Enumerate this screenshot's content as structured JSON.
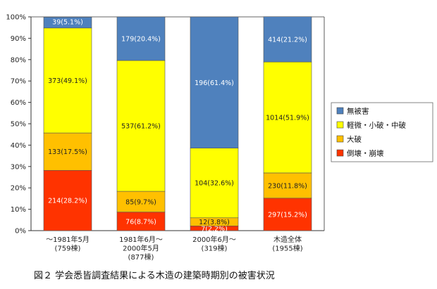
{
  "chart_data": {
    "type": "bar",
    "stacked": true,
    "percent": true,
    "title": "図２ 学会悉皆調査結果による木造の建築時期別の被害状況",
    "categories": [
      {
        "label": "～1981年5月",
        "sub": "(759棟)"
      },
      {
        "label": "1981年6月～",
        "label2": "2000年5月",
        "sub": "(877棟)"
      },
      {
        "label": "2000年6月～",
        "sub": "(319棟)"
      },
      {
        "label": "木造全体",
        "sub": "(1955棟)"
      }
    ],
    "y_ticks": [
      "0%",
      "10%",
      "20%",
      "30%",
      "40%",
      "50%",
      "60%",
      "70%",
      "80%",
      "90%",
      "100%"
    ],
    "ylim": [
      0,
      100
    ],
    "series": [
      {
        "name": "倒壊・崩壊",
        "color": "#ff3300",
        "values": [
          28.2,
          8.7,
          2.2,
          15.2
        ],
        "labels": [
          "214(28.2%)",
          "76(8.7%)",
          "7(2.2%)",
          "297(15.2%)"
        ]
      },
      {
        "name": "大破",
        "color": "#ffc000",
        "values": [
          17.5,
          9.7,
          3.8,
          11.8
        ],
        "labels": [
          "133(17.5%)",
          "85(9.7%)",
          "12(3.8%)",
          "230(11.8%)"
        ]
      },
      {
        "name": "軽微・小破・中破",
        "color": "#ffff00",
        "values": [
          49.1,
          61.2,
          32.6,
          51.9
        ],
        "labels": [
          "373(49.1%)",
          "537(61.2%)",
          "104(32.6%)",
          "1014(51.9%)"
        ]
      },
      {
        "name": "無被害",
        "color": "#4f81bd",
        "values": [
          5.1,
          20.4,
          61.4,
          21.2
        ],
        "labels": [
          "39(5.1%)",
          "179(20.4%)",
          "196(61.4%)",
          "414(21.2%)"
        ]
      }
    ],
    "legend_order": [
      "無被害",
      "軽微・小破・中破",
      "大破",
      "倒壊・崩壊"
    ],
    "legend_position": "right",
    "grid": false
  }
}
